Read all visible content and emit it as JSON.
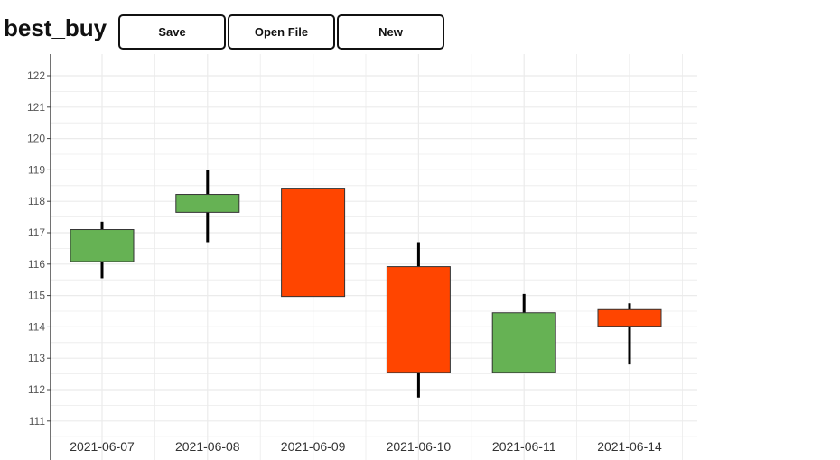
{
  "app": {
    "title": "best_buy"
  },
  "toolbar": {
    "save_label": "Save",
    "open_label": "Open File",
    "new_label": "New"
  },
  "colors": {
    "increasing": "#66b254",
    "decreasing": "#ff4500",
    "wick": "#000000",
    "grid": "#ebebeb",
    "axis": "#444444"
  },
  "chart_data": {
    "type": "candlestick",
    "categories": [
      "2021-06-07",
      "2021-06-08",
      "2021-06-09",
      "2021-06-10",
      "2021-06-11",
      "2021-06-14"
    ],
    "series": [
      {
        "open": [
          116.08,
          117.65,
          118.42,
          115.92,
          112.55,
          114.55
        ],
        "high": [
          117.35,
          119.0,
          118.42,
          116.7,
          115.05,
          114.75
        ],
        "low": [
          115.55,
          116.7,
          114.97,
          111.75,
          112.55,
          112.8
        ],
        "close": [
          117.1,
          118.22,
          114.97,
          112.55,
          114.45,
          114.02
        ]
      }
    ],
    "yticks": [
      111,
      112,
      113,
      114,
      115,
      116,
      117,
      118,
      119,
      120,
      121,
      122
    ],
    "ylim": [
      110.1,
      122.6
    ],
    "grid": true,
    "xlabel": "",
    "ylabel": ""
  }
}
